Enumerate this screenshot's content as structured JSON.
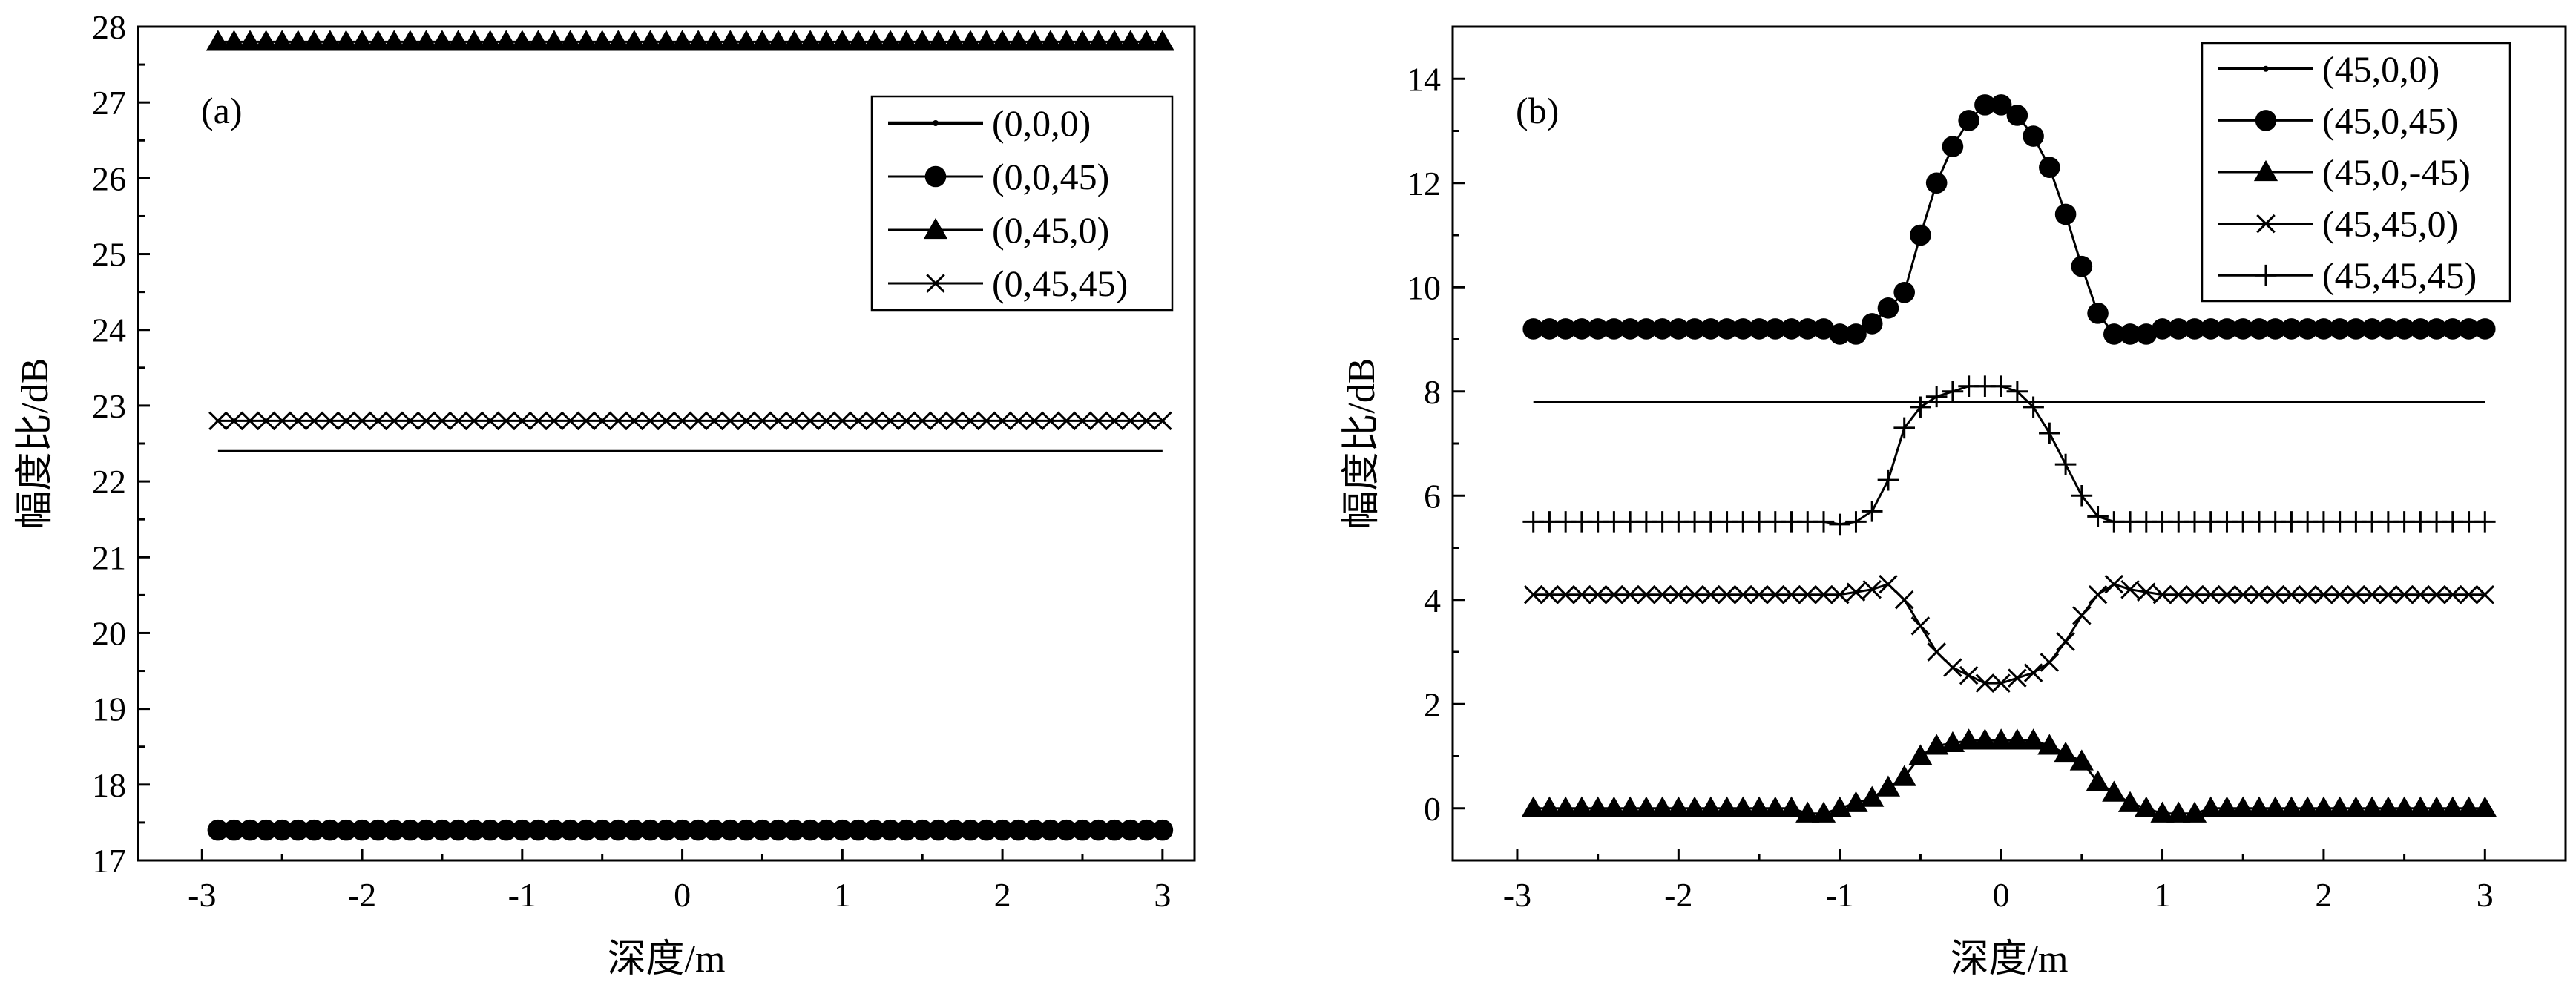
{
  "chart_data": [
    {
      "type": "line",
      "panel_label": "(a)",
      "xlabel": "深度/m",
      "ylabel": "幅度比/dB",
      "xlim": [
        -3.4,
        3.2
      ],
      "ylim": [
        17,
        28
      ],
      "xticks": [
        -3,
        -2,
        -1,
        0,
        1,
        2,
        3
      ],
      "yticks": [
        17,
        18,
        19,
        20,
        21,
        22,
        23,
        24,
        25,
        26,
        27,
        28
      ],
      "grid": false,
      "legend_position": "top-right",
      "x_range": [
        -2.9,
        3.0
      ],
      "n_markers": 60,
      "series": [
        {
          "name": "(0,0,0)",
          "marker": "dot",
          "profile": [
            [
              -2.9,
              22.4
            ],
            [
              3.0,
              22.4
            ]
          ]
        },
        {
          "name": "(0,0,45)",
          "marker": "circle",
          "profile": [
            [
              -2.9,
              17.4
            ],
            [
              3.0,
              17.4
            ]
          ]
        },
        {
          "name": "(0,45,0)",
          "marker": "triangle",
          "profile": [
            [
              -2.9,
              27.8
            ],
            [
              3.0,
              27.8
            ]
          ]
        },
        {
          "name": "(0,45,45)",
          "marker": "cross",
          "profile": [
            [
              -2.9,
              22.8
            ],
            [
              3.0,
              22.8
            ]
          ]
        }
      ]
    },
    {
      "type": "line",
      "panel_label": "(b)",
      "xlabel": "深度/m",
      "ylabel": "幅度比/dB",
      "xlim": [
        -3.4,
        3.5
      ],
      "ylim": [
        -1,
        15
      ],
      "xticks": [
        -3,
        -2,
        -1,
        0,
        1,
        2,
        3
      ],
      "yticks": [
        0,
        2,
        4,
        6,
        8,
        10,
        12,
        14
      ],
      "grid": false,
      "legend_position": "top-right",
      "x_range": [
        -2.9,
        3.0
      ],
      "n_markers": 60,
      "series": [
        {
          "name": "(45,0,0)",
          "marker": "dot",
          "profile": [
            [
              -2.9,
              7.8
            ],
            [
              3.0,
              7.8
            ]
          ]
        },
        {
          "name": "(45,0,45)",
          "marker": "circle",
          "profile": [
            [
              -2.9,
              9.2
            ],
            [
              -1.1,
              9.2
            ],
            [
              -1.0,
              9.1
            ],
            [
              -0.9,
              9.1
            ],
            [
              -0.8,
              9.3
            ],
            [
              -0.6,
              9.9
            ],
            [
              -0.5,
              11.0
            ],
            [
              -0.4,
              12.0
            ],
            [
              -0.3,
              12.7
            ],
            [
              -0.2,
              13.2
            ],
            [
              -0.1,
              13.5
            ],
            [
              0.0,
              13.5
            ],
            [
              0.1,
              13.3
            ],
            [
              0.2,
              12.9
            ],
            [
              0.3,
              12.3
            ],
            [
              0.4,
              11.4
            ],
            [
              0.5,
              10.4
            ],
            [
              0.6,
              9.5
            ],
            [
              0.7,
              9.1
            ],
            [
              0.9,
              9.1
            ],
            [
              1.0,
              9.2
            ],
            [
              3.0,
              9.2
            ]
          ]
        },
        {
          "name": "(45,0,-45)",
          "marker": "triangle",
          "profile": [
            [
              -2.9,
              0.0
            ],
            [
              -1.3,
              0.0
            ],
            [
              -1.2,
              -0.1
            ],
            [
              -1.1,
              -0.1
            ],
            [
              -1.0,
              0.0
            ],
            [
              -0.8,
              0.2
            ],
            [
              -0.6,
              0.6
            ],
            [
              -0.5,
              1.0
            ],
            [
              -0.4,
              1.2
            ],
            [
              -0.2,
              1.3
            ],
            [
              0.2,
              1.3
            ],
            [
              0.3,
              1.2
            ],
            [
              0.5,
              0.9
            ],
            [
              0.6,
              0.5
            ],
            [
              0.8,
              0.1
            ],
            [
              1.0,
              -0.1
            ],
            [
              1.2,
              -0.1
            ],
            [
              1.3,
              0.0
            ],
            [
              3.0,
              0.0
            ]
          ]
        },
        {
          "name": "(45,45,0)",
          "marker": "cross",
          "profile": [
            [
              -2.9,
              4.1
            ],
            [
              -1.0,
              4.1
            ],
            [
              -0.8,
              4.2
            ],
            [
              -0.7,
              4.3
            ],
            [
              -0.6,
              4.0
            ],
            [
              -0.5,
              3.5
            ],
            [
              -0.4,
              3.0
            ],
            [
              -0.3,
              2.7
            ],
            [
              -0.2,
              2.55
            ],
            [
              -0.1,
              2.4
            ],
            [
              0.0,
              2.4
            ],
            [
              0.1,
              2.5
            ],
            [
              0.2,
              2.6
            ],
            [
              0.3,
              2.8
            ],
            [
              0.4,
              3.2
            ],
            [
              0.5,
              3.7
            ],
            [
              0.6,
              4.1
            ],
            [
              0.7,
              4.3
            ],
            [
              0.8,
              4.2
            ],
            [
              1.0,
              4.1
            ],
            [
              3.0,
              4.1
            ]
          ]
        },
        {
          "name": "(45,45,45)",
          "marker": "plus",
          "profile": [
            [
              -2.9,
              5.5
            ],
            [
              -1.1,
              5.5
            ],
            [
              -1.0,
              5.45
            ],
            [
              -0.9,
              5.5
            ],
            [
              -0.8,
              5.7
            ],
            [
              -0.7,
              6.3
            ],
            [
              -0.6,
              7.3
            ],
            [
              -0.5,
              7.7
            ],
            [
              -0.4,
              7.9
            ],
            [
              -0.3,
              8.0
            ],
            [
              -0.2,
              8.1
            ],
            [
              0.0,
              8.1
            ],
            [
              0.1,
              8.0
            ],
            [
              0.2,
              7.7
            ],
            [
              0.3,
              7.2
            ],
            [
              0.4,
              6.6
            ],
            [
              0.5,
              6.0
            ],
            [
              0.6,
              5.6
            ],
            [
              0.7,
              5.5
            ],
            [
              3.0,
              5.5
            ]
          ]
        }
      ]
    }
  ]
}
